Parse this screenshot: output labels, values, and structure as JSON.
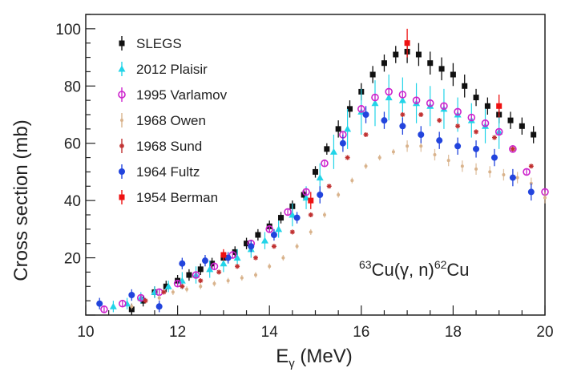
{
  "chart_data": {
    "type": "scatter",
    "xlabel": "E",
    "xlabel_sub": "γ",
    "xlabel_unit": " (MeV)",
    "ylabel": "Cross section (mb)",
    "xlim": [
      10,
      20
    ],
    "ylim": [
      0,
      105
    ],
    "x_ticks": [
      10,
      12,
      14,
      16,
      18,
      20
    ],
    "y_ticks": [
      20,
      40,
      60,
      80,
      100
    ],
    "grid": false,
    "legend_position": "top-left",
    "annotation": {
      "pre1": "63",
      "t1": "Cu(γ, n)",
      "pre2": "62",
      "t2": "Cu"
    },
    "series": [
      {
        "name": "SLEGS",
        "color": "#111111",
        "marker": "square",
        "x": [
          11.0,
          11.25,
          11.5,
          11.75,
          12.0,
          12.25,
          12.5,
          12.75,
          13.0,
          13.25,
          13.5,
          13.75,
          14.0,
          14.25,
          14.5,
          14.75,
          15.0,
          15.25,
          15.5,
          15.75,
          16.0,
          16.25,
          16.5,
          16.75,
          17.0,
          17.25,
          17.5,
          17.75,
          18.0,
          18.25,
          18.5,
          18.75,
          19.0,
          19.25,
          19.5,
          19.75
        ],
        "y": [
          2,
          5,
          8,
          10,
          12,
          14,
          16,
          18,
          20,
          22,
          25,
          28,
          31,
          34,
          38,
          42,
          50,
          58,
          65,
          72,
          78,
          84,
          88,
          91,
          92,
          91,
          88,
          86,
          84,
          80,
          76,
          73,
          70,
          68,
          66,
          63
        ],
        "err": [
          2,
          2,
          2,
          2,
          2,
          2,
          2,
          2,
          2,
          2,
          2,
          2,
          2,
          2,
          2,
          2,
          2,
          2,
          3,
          3,
          3,
          3,
          3,
          3,
          4,
          4,
          4,
          4,
          4,
          4,
          3,
          3,
          3,
          3,
          3,
          3
        ]
      },
      {
        "name": "2012 Plaisir",
        "color": "#22d4e8",
        "marker": "triangle",
        "x": [
          10.6,
          10.9,
          11.2,
          11.5,
          11.8,
          12.1,
          12.4,
          12.7,
          13.0,
          13.3,
          13.6,
          13.9,
          14.2,
          14.5,
          14.8,
          15.1,
          15.4,
          15.7,
          16.0,
          16.3,
          16.6,
          16.9,
          17.2,
          17.5,
          17.8,
          18.1,
          18.4,
          18.7,
          19.0
        ],
        "y": [
          3,
          4,
          6,
          8,
          10,
          12,
          14,
          16,
          18,
          20,
          23,
          26,
          30,
          35,
          41,
          48,
          57,
          65,
          71,
          74,
          76,
          75,
          74,
          73,
          72,
          70,
          68,
          66,
          64
        ],
        "err": [
          2,
          2,
          2,
          2,
          2,
          3,
          3,
          3,
          3,
          3,
          3,
          3,
          3,
          4,
          4,
          5,
          6,
          7,
          8,
          8,
          8,
          8,
          7,
          7,
          7,
          6,
          6,
          6,
          6
        ]
      },
      {
        "name": "1995 Varlamov",
        "color": "#cc22cc",
        "marker": "open-circle",
        "x": [
          10.4,
          10.8,
          11.2,
          11.6,
          12.0,
          12.4,
          12.8,
          13.2,
          13.6,
          14.0,
          14.4,
          14.8,
          15.2,
          15.6,
          16.0,
          16.3,
          16.6,
          16.9,
          17.2,
          17.5,
          17.8,
          18.1,
          18.4,
          18.7,
          19.0,
          19.3,
          19.6,
          20.0
        ],
        "y": [
          2,
          4,
          6,
          8,
          11,
          14,
          17,
          21,
          25,
          30,
          36,
          43,
          53,
          63,
          72,
          76,
          78,
          77,
          75,
          74,
          73,
          71,
          69,
          67,
          64,
          58,
          50,
          43
        ],
        "err": [
          1,
          1,
          1,
          1,
          1,
          1,
          1,
          1,
          1,
          1,
          1,
          1,
          1,
          1,
          1,
          1,
          1,
          1,
          1,
          1,
          1,
          1,
          1,
          1,
          1,
          1,
          1,
          1
        ]
      },
      {
        "name": "1968 Owen",
        "color": "#d9b38c",
        "marker": "dot",
        "x": [
          11.0,
          11.3,
          11.6,
          11.9,
          12.2,
          12.5,
          12.8,
          13.1,
          13.4,
          13.7,
          14.0,
          14.3,
          14.6,
          14.9,
          15.2,
          15.5,
          15.8,
          16.1,
          16.4,
          16.7,
          17.0,
          17.3,
          17.6,
          17.9,
          18.2,
          18.5,
          18.8,
          19.1,
          19.4,
          19.7,
          20.0
        ],
        "y": [
          3,
          5,
          6,
          8,
          9,
          10,
          11,
          12,
          13,
          14,
          17,
          20,
          24,
          29,
          35,
          42,
          47,
          52,
          55,
          57,
          59,
          59,
          56,
          54,
          52,
          51,
          50,
          49,
          48,
          46,
          41
        ],
        "err": [
          1,
          1,
          1,
          1,
          1,
          1,
          1,
          1,
          1,
          1,
          1,
          1,
          1,
          1,
          1,
          1,
          1,
          1,
          1,
          1,
          2,
          2,
          2,
          2,
          2,
          2,
          2,
          2,
          2,
          2,
          2
        ]
      },
      {
        "name": "1968 Sund",
        "color": "#c03030",
        "marker": "star",
        "x": [
          11.3,
          11.7,
          12.1,
          12.5,
          12.9,
          13.3,
          13.7,
          14.1,
          14.5,
          14.9,
          15.3,
          15.7,
          16.1,
          16.5,
          16.9,
          17.3,
          17.7,
          18.1,
          18.5,
          18.9,
          19.3,
          19.7
        ],
        "y": [
          5,
          8,
          10,
          12,
          15,
          17,
          20,
          24,
          29,
          35,
          45,
          55,
          63,
          68,
          70,
          70,
          68,
          66,
          64,
          62,
          58,
          52
        ],
        "err": [
          0,
          0,
          0,
          0,
          0,
          0,
          0,
          0,
          0,
          0,
          0,
          0,
          0,
          0,
          0,
          0,
          0,
          0,
          0,
          0,
          0,
          0
        ]
      },
      {
        "name": "1964 Fultz",
        "color": "#2244dd",
        "marker": "circle",
        "x": [
          10.3,
          11.0,
          11.6,
          12.1,
          12.6,
          13.1,
          13.6,
          14.1,
          14.6,
          15.1,
          15.6,
          16.1,
          16.5,
          16.9,
          17.3,
          17.7,
          18.1,
          18.5,
          18.9,
          19.3,
          19.7
        ],
        "y": [
          4,
          7,
          3,
          18,
          19,
          20,
          24,
          28,
          34,
          42,
          60,
          70,
          68,
          66,
          63,
          61,
          59,
          58,
          55,
          48,
          43
        ],
        "err": [
          2,
          2,
          2,
          2,
          2,
          2,
          2,
          2,
          2,
          3,
          3,
          3,
          3,
          3,
          3,
          3,
          3,
          3,
          3,
          3,
          3
        ]
      },
      {
        "name": "1954 Berman",
        "color": "#ee1111",
        "marker": "square",
        "x": [
          13.0,
          14.9,
          17.0,
          19.0
        ],
        "y": [
          21,
          40,
          95,
          73
        ],
        "err": [
          2,
          3,
          5,
          4
        ]
      }
    ]
  }
}
